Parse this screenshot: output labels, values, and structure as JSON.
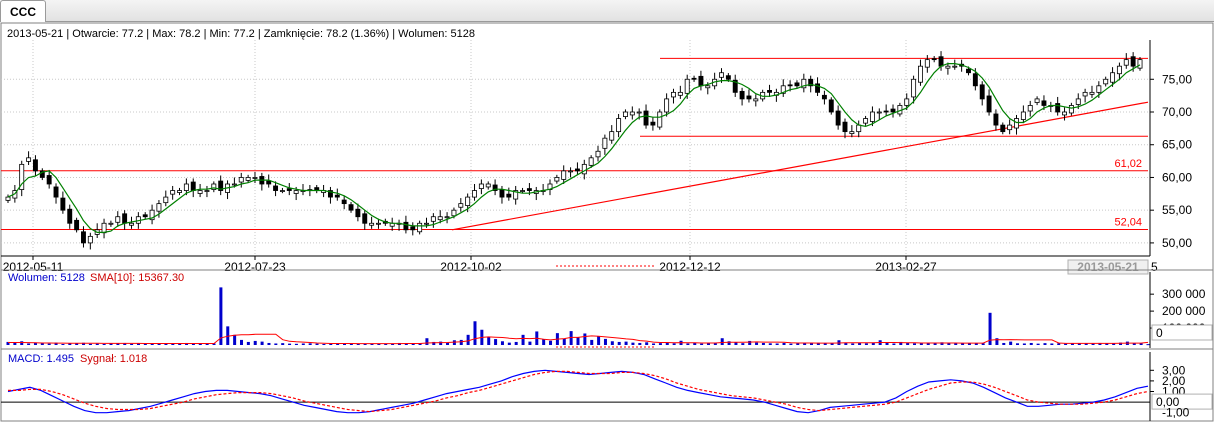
{
  "tab": {
    "label": "CCC"
  },
  "info_line": {
    "date": "2013-05-21",
    "open_label": "Otwarcie",
    "open": "77.2",
    "max_label": "Max",
    "max": "78.2",
    "min_label": "Min",
    "min": "77.2",
    "close_label": "Zamknięcie",
    "close": "78.2",
    "change_pct": "1.36%",
    "volume_label": "Wolumen",
    "volume": "5128"
  },
  "colors": {
    "up_candle": "#ffffff",
    "candle_outline": "#000000",
    "sma_line": "#008000",
    "support_lines": "#ff0000",
    "volume_bars": "#0000cc",
    "volume_sma": "#ff0000",
    "macd_line": "#0000ff",
    "signal_line": "#ff0000"
  },
  "chart_data": [
    {
      "type": "candlestick",
      "panel": "price",
      "x_tick_labels": [
        "2012-05-11",
        "2012-07-23",
        "2012-10-02",
        "2012-12-12",
        "2013-02-27"
      ],
      "last_date_label": "2013-05-21",
      "last_date_tail": "5",
      "y_tick_labels": [
        "50,00",
        "55,00",
        "60,00",
        "65,00",
        "70,00",
        "75,00"
      ],
      "ylim": [
        48,
        81
      ],
      "grid": true,
      "closes": [
        57,
        58,
        62,
        63,
        61,
        60,
        59,
        57,
        55,
        53,
        52,
        50,
        51,
        52,
        53,
        53,
        54,
        53,
        53,
        54,
        54,
        55,
        56,
        57,
        58,
        58,
        59,
        58,
        58,
        58,
        59,
        58,
        59,
        59,
        60,
        60,
        60,
        59,
        59,
        58,
        58,
        58,
        58,
        58,
        58,
        58,
        58,
        57,
        57,
        56,
        55,
        54,
        53,
        53,
        53,
        53,
        53,
        53,
        52,
        52,
        53,
        53,
        54,
        54,
        54,
        55,
        56,
        57,
        58,
        59,
        59,
        58,
        57,
        57,
        58,
        58,
        58,
        58,
        58,
        59,
        60,
        61,
        61,
        61,
        62,
        63,
        64,
        66,
        67,
        69,
        70,
        70,
        70,
        68,
        68,
        70,
        72,
        73,
        73,
        75,
        75,
        74,
        74,
        75,
        76,
        75,
        73,
        72,
        72,
        72,
        73,
        73,
        73,
        74,
        74,
        74,
        75,
        74,
        73,
        72,
        70,
        68,
        67,
        67,
        68,
        69,
        70,
        70,
        70,
        70,
        71,
        72,
        75,
        77,
        78,
        78,
        77,
        77,
        77,
        77,
        76,
        74,
        72,
        70,
        68,
        67,
        68,
        69,
        70,
        71,
        72,
        71,
        71,
        70,
        70,
        71,
        72,
        73,
        73,
        74,
        75,
        76,
        77,
        78,
        77,
        78
      ],
      "sma_label": "",
      "horizontal_lines": [
        {
          "value": 78.2,
          "label": ""
        },
        {
          "value": 66.3,
          "label": ""
        },
        {
          "value": 61.02,
          "label": "61,02"
        },
        {
          "value": 52.04,
          "label": "52,04"
        }
      ],
      "trend_line": {
        "from_date": "2012-10-02",
        "from_value": 52.0,
        "to_value": 71.5
      }
    },
    {
      "type": "bar",
      "panel": "volume",
      "legend": [
        "Wolumen: 5128",
        "SMA[10]: 15367.30"
      ],
      "y_tick_labels": [
        "300 000",
        "200 000",
        "100 000",
        "0"
      ],
      "ylim": [
        0,
        360000
      ],
      "values": [
        18000,
        12000,
        22000,
        9000,
        15000,
        11000,
        8000,
        14000,
        6000,
        10000,
        9000,
        13000,
        7000,
        8000,
        6000,
        11000,
        9000,
        12000,
        7000,
        10000,
        8000,
        6000,
        9000,
        8000,
        7000,
        10000,
        12000,
        9000,
        8000,
        7000,
        9000,
        340000,
        110000,
        60000,
        30000,
        18000,
        24000,
        20000,
        12000,
        9000,
        11000,
        8000,
        7000,
        9000,
        10000,
        8000,
        6000,
        7000,
        9000,
        8000,
        10000,
        7000,
        8000,
        9000,
        6000,
        7000,
        8000,
        12000,
        9000,
        8000,
        11000,
        40000,
        18000,
        20000,
        12000,
        28000,
        30000,
        60000,
        140000,
        90000,
        50000,
        35000,
        22000,
        14000,
        18000,
        60000,
        20000,
        80000,
        35000,
        25000,
        70000,
        38000,
        82000,
        45000,
        68000,
        30000,
        52000,
        36000,
        22000,
        18000,
        20000,
        14000,
        12000,
        16000,
        9000,
        11000,
        14000,
        10000,
        25000,
        9000,
        12000,
        8000,
        10000,
        13000,
        40000,
        22000,
        15000,
        11000,
        24000,
        14000,
        12000,
        10000,
        9000,
        12000,
        8000,
        9000,
        11000,
        10000,
        13000,
        9000,
        10000,
        28000,
        12000,
        9000,
        14000,
        10000,
        12000,
        28000,
        12000,
        9000,
        18000,
        12000,
        10000,
        14000,
        11000,
        9000,
        16000,
        12000,
        10000,
        12000,
        9000,
        11000,
        10000,
        190000,
        40000,
        12000,
        20000,
        10000,
        9000,
        12000,
        8000,
        11000,
        9000,
        10000,
        8000,
        9000,
        11000,
        10000,
        8000,
        12000,
        9000,
        10000,
        14000,
        20000,
        10000,
        9000,
        5128
      ],
      "sma_values": [
        15000,
        15000,
        15000,
        14000,
        13000,
        12000,
        12000,
        11000,
        11000,
        10000,
        10000,
        10000,
        10000,
        10000,
        9500,
        9500,
        9500,
        9500,
        9500,
        9500,
        9000,
        9000,
        9000,
        9000,
        9000,
        9000,
        9000,
        9000,
        9000,
        9000,
        9000,
        42000,
        52000,
        57000,
        60000,
        61000,
        63000,
        64000,
        64000,
        64000,
        31000,
        22000,
        19000,
        17000,
        15000,
        12000,
        10000,
        9000,
        9000,
        9000,
        9000,
        8000,
        8000,
        8000,
        8000,
        8000,
        8000,
        8000,
        9000,
        9000,
        9000,
        12000,
        13000,
        14000,
        15000,
        17000,
        19000,
        24000,
        37000,
        45000,
        48000,
        46000,
        44000,
        40000,
        37000,
        39000,
        38000,
        40000,
        34000,
        30000,
        35000,
        38000,
        45000,
        45000,
        50000,
        54000,
        52000,
        48000,
        44000,
        41000,
        36000,
        33000,
        26000,
        23000,
        17000,
        15000,
        15000,
        13000,
        14000,
        13000,
        13000,
        12000,
        12000,
        12000,
        15000,
        16000,
        16000,
        16000,
        17000,
        18000,
        17000,
        17000,
        17000,
        16000,
        13000,
        12000,
        12000,
        12000,
        11000,
        11000,
        11000,
        12000,
        13000,
        13000,
        13000,
        13000,
        13000,
        15000,
        15000,
        15000,
        14000,
        13000,
        13000,
        12000,
        12000,
        12000,
        12000,
        12000,
        12000,
        11000,
        11000,
        11000,
        11000,
        29000,
        32000,
        31000,
        32000,
        31000,
        30000,
        30000,
        30000,
        30000,
        30000,
        12000,
        9500,
        9200,
        9300,
        9300,
        9200,
        9600,
        9700,
        9600,
        10000,
        11000,
        11000,
        11000,
        15367
      ]
    },
    {
      "type": "line",
      "panel": "macd",
      "legend": [
        "MACD: 1.495",
        "Sygnał: 1.018"
      ],
      "y_tick_labels": [
        "3,00",
        "2,00",
        "1,00",
        "0,00",
        "-1,00"
      ],
      "ylim": [
        -1.5,
        3.5
      ],
      "series": [
        {
          "name": "MACD",
          "values": [
            1.0,
            1.2,
            1.4,
            1.1,
            0.6,
            0.1,
            -0.4,
            -0.8,
            -1.0,
            -1.0,
            -0.9,
            -0.8,
            -0.6,
            -0.4,
            -0.1,
            0.2,
            0.5,
            0.8,
            1.0,
            1.1,
            1.1,
            1.0,
            0.9,
            0.8,
            0.6,
            0.3,
            0.0,
            -0.3,
            -0.5,
            -0.7,
            -0.9,
            -1.0,
            -1.0,
            -0.9,
            -0.7,
            -0.5,
            -0.3,
            -0.1,
            0.2,
            0.5,
            0.8,
            1.0,
            1.2,
            1.4,
            1.7,
            2.0,
            2.4,
            2.7,
            2.9,
            3.0,
            2.9,
            2.8,
            2.7,
            2.6,
            2.7,
            2.8,
            2.9,
            2.8,
            2.6,
            2.2,
            1.8,
            1.4,
            1.1,
            0.9,
            0.7,
            0.5,
            0.4,
            0.3,
            0.2,
            0.0,
            -0.3,
            -0.6,
            -0.9,
            -1.0,
            -0.8,
            -0.5,
            -0.4,
            -0.3,
            -0.2,
            -0.1,
            0.0,
            0.4,
            1.0,
            1.5,
            1.9,
            2.0,
            2.1,
            2.0,
            1.8,
            1.4,
            0.9,
            0.4,
            0.0,
            -0.4,
            -0.4,
            -0.3,
            -0.2,
            -0.2,
            -0.1,
            0.0,
            0.2,
            0.5,
            0.9,
            1.3,
            1.5
          ]
        },
        {
          "name": "Sygnał",
          "values": [
            1.1,
            1.1,
            1.2,
            1.2,
            1.0,
            0.7,
            0.3,
            -0.1,
            -0.4,
            -0.6,
            -0.7,
            -0.7,
            -0.7,
            -0.6,
            -0.4,
            -0.2,
            0.0,
            0.3,
            0.5,
            0.7,
            0.8,
            0.9,
            0.9,
            0.9,
            0.8,
            0.6,
            0.4,
            0.1,
            -0.1,
            -0.3,
            -0.5,
            -0.7,
            -0.8,
            -0.9,
            -0.8,
            -0.7,
            -0.5,
            -0.3,
            -0.1,
            0.1,
            0.4,
            0.6,
            0.9,
            1.1,
            1.4,
            1.7,
            2.0,
            2.3,
            2.6,
            2.8,
            2.9,
            2.9,
            2.8,
            2.7,
            2.7,
            2.7,
            2.8,
            2.8,
            2.7,
            2.5,
            2.2,
            1.8,
            1.5,
            1.2,
            1.0,
            0.8,
            0.6,
            0.5,
            0.4,
            0.2,
            0.0,
            -0.2,
            -0.5,
            -0.7,
            -0.8,
            -0.7,
            -0.6,
            -0.5,
            -0.4,
            -0.3,
            -0.2,
            0.0,
            0.4,
            0.8,
            1.2,
            1.5,
            1.8,
            1.9,
            1.9,
            1.7,
            1.4,
            1.0,
            0.6,
            0.2,
            0.0,
            -0.1,
            -0.2,
            -0.2,
            -0.2,
            -0.1,
            0.0,
            0.2,
            0.5,
            0.8,
            1.0
          ]
        }
      ]
    }
  ]
}
